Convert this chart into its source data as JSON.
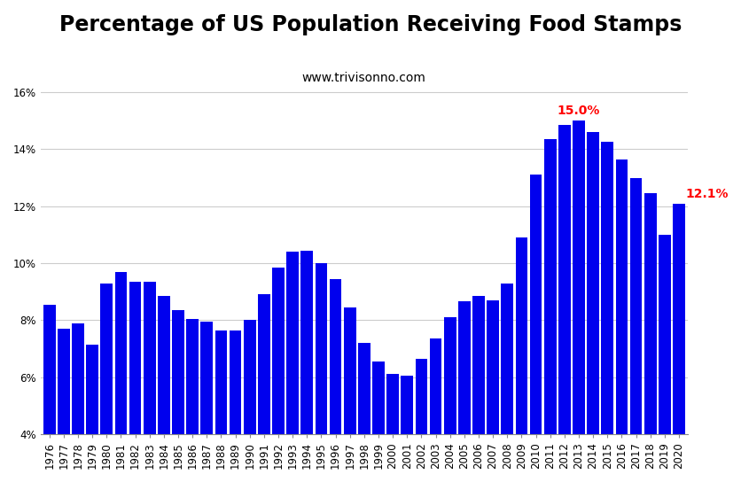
{
  "title": "Percentage of US Population Receiving Food Stamps",
  "subtitle": "www.trivisonno.com",
  "years": [
    1976,
    1977,
    1978,
    1979,
    1980,
    1981,
    1982,
    1983,
    1984,
    1985,
    1986,
    1987,
    1988,
    1989,
    1990,
    1991,
    1992,
    1993,
    1994,
    1995,
    1996,
    1997,
    1998,
    1999,
    2000,
    2001,
    2002,
    2003,
    2004,
    2005,
    2006,
    2007,
    2008,
    2009,
    2010,
    2011,
    2012,
    2013,
    2014,
    2015,
    2016,
    2017,
    2018,
    2019,
    2020
  ],
  "values": [
    8.55,
    7.7,
    7.9,
    7.15,
    9.3,
    9.7,
    9.35,
    9.35,
    8.85,
    8.35,
    8.05,
    7.95,
    7.65,
    7.65,
    8.0,
    8.9,
    9.85,
    10.4,
    10.45,
    10.0,
    9.45,
    8.45,
    7.2,
    6.55,
    6.1,
    6.05,
    6.65,
    7.35,
    8.1,
    8.65,
    8.85,
    8.7,
    9.3,
    10.9,
    13.1,
    14.35,
    14.85,
    15.0,
    14.6,
    14.25,
    13.65,
    13.0,
    12.45,
    11.0,
    12.1
  ],
  "bar_color": "#0000ee",
  "background_color": "#ffffff",
  "ylim": [
    4,
    16.2
  ],
  "yticks": [
    4,
    6,
    8,
    10,
    12,
    14,
    16
  ],
  "ytick_labels": [
    "4%",
    "6%",
    "8%",
    "10%",
    "12%",
    "14%",
    "16%"
  ],
  "annotation_max_year": 2013,
  "annotation_max_value": 15.0,
  "annotation_max_label": "15.0%",
  "annotation_last_year": 2020,
  "annotation_last_value": 12.1,
  "annotation_last_label": "12.1%",
  "annotation_color": "#ff0000",
  "grid_color": "#cccccc",
  "title_fontsize": 17,
  "subtitle_fontsize": 10,
  "tick_fontsize": 8.5,
  "bar_bottom": 4
}
